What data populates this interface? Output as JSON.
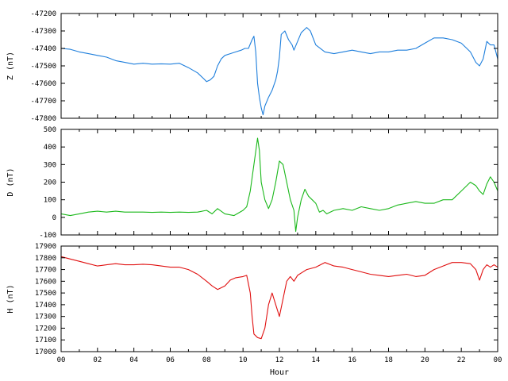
{
  "chart_data": [
    {
      "type": "line",
      "ylabel": "Z (nT)",
      "ylim": [
        -47800,
        -47200
      ],
      "yticks": [
        -47200,
        -47300,
        -47400,
        -47500,
        -47600,
        -47700,
        -47800
      ],
      "xlim": [
        0,
        24
      ],
      "grid": false,
      "series": [
        {
          "color": "#1f7fdc",
          "points": [
            [
              0,
              -47400
            ],
            [
              0.5,
              -47405
            ],
            [
              1,
              -47420
            ],
            [
              1.5,
              -47430
            ],
            [
              2,
              -47440
            ],
            [
              2.5,
              -47450
            ],
            [
              3,
              -47470
            ],
            [
              3.5,
              -47480
            ],
            [
              4,
              -47490
            ],
            [
              4.5,
              -47485
            ],
            [
              5,
              -47490
            ],
            [
              5.5,
              -47488
            ],
            [
              6,
              -47490
            ],
            [
              6.5,
              -47485
            ],
            [
              7,
              -47510
            ],
            [
              7.5,
              -47540
            ],
            [
              7.8,
              -47570
            ],
            [
              8,
              -47590
            ],
            [
              8.2,
              -47580
            ],
            [
              8.4,
              -47560
            ],
            [
              8.6,
              -47500
            ],
            [
              8.8,
              -47460
            ],
            [
              9,
              -47440
            ],
            [
              9.3,
              -47430
            ],
            [
              9.6,
              -47420
            ],
            [
              9.9,
              -47410
            ],
            [
              10.1,
              -47400
            ],
            [
              10.3,
              -47400
            ],
            [
              10.5,
              -47350
            ],
            [
              10.6,
              -47330
            ],
            [
              10.7,
              -47420
            ],
            [
              10.8,
              -47600
            ],
            [
              10.9,
              -47680
            ],
            [
              11,
              -47740
            ],
            [
              11.1,
              -47780
            ],
            [
              11.2,
              -47730
            ],
            [
              11.4,
              -47680
            ],
            [
              11.6,
              -47640
            ],
            [
              11.8,
              -47580
            ],
            [
              11.9,
              -47530
            ],
            [
              12,
              -47450
            ],
            [
              12.1,
              -47320
            ],
            [
              12.3,
              -47300
            ],
            [
              12.5,
              -47350
            ],
            [
              12.7,
              -47380
            ],
            [
              12.8,
              -47410
            ],
            [
              13,
              -47360
            ],
            [
              13.2,
              -47310
            ],
            [
              13.5,
              -47280
            ],
            [
              13.7,
              -47300
            ],
            [
              14,
              -47380
            ],
            [
              14.5,
              -47420
            ],
            [
              15,
              -47430
            ],
            [
              15.5,
              -47420
            ],
            [
              16,
              -47410
            ],
            [
              16.5,
              -47420
            ],
            [
              17,
              -47430
            ],
            [
              17.5,
              -47420
            ],
            [
              18,
              -47420
            ],
            [
              18.5,
              -47410
            ],
            [
              19,
              -47410
            ],
            [
              19.5,
              -47400
            ],
            [
              20,
              -47370
            ],
            [
              20.5,
              -47340
            ],
            [
              21,
              -47340
            ],
            [
              21.5,
              -47350
            ],
            [
              22,
              -47370
            ],
            [
              22.5,
              -47420
            ],
            [
              22.8,
              -47480
            ],
            [
              23,
              -47500
            ],
            [
              23.2,
              -47460
            ],
            [
              23.4,
              -47360
            ],
            [
              23.6,
              -47380
            ],
            [
              23.8,
              -47380
            ],
            [
              24,
              -47460
            ]
          ]
        }
      ]
    },
    {
      "type": "line",
      "ylabel": "D (nT)",
      "ylim": [
        -100,
        500
      ],
      "yticks": [
        500,
        400,
        300,
        200,
        100,
        0,
        -100
      ],
      "xlim": [
        0,
        24
      ],
      "grid": false,
      "series": [
        {
          "color": "#1ab81a",
          "points": [
            [
              0,
              20
            ],
            [
              0.5,
              10
            ],
            [
              1,
              20
            ],
            [
              1.5,
              30
            ],
            [
              2,
              35
            ],
            [
              2.5,
              30
            ],
            [
              3,
              35
            ],
            [
              3.5,
              30
            ],
            [
              4,
              30
            ],
            [
              4.5,
              30
            ],
            [
              5,
              28
            ],
            [
              5.5,
              30
            ],
            [
              6,
              28
            ],
            [
              6.5,
              30
            ],
            [
              7,
              28
            ],
            [
              7.5,
              30
            ],
            [
              8,
              40
            ],
            [
              8.3,
              20
            ],
            [
              8.6,
              50
            ],
            [
              9,
              20
            ],
            [
              9.5,
              10
            ],
            [
              10,
              40
            ],
            [
              10.2,
              60
            ],
            [
              10.4,
              150
            ],
            [
              10.6,
              300
            ],
            [
              10.8,
              450
            ],
            [
              10.9,
              380
            ],
            [
              11,
              200
            ],
            [
              11.2,
              100
            ],
            [
              11.4,
              50
            ],
            [
              11.6,
              100
            ],
            [
              11.8,
              200
            ],
            [
              12,
              320
            ],
            [
              12.2,
              300
            ],
            [
              12.4,
              200
            ],
            [
              12.6,
              100
            ],
            [
              12.8,
              40
            ],
            [
              12.9,
              -80
            ],
            [
              13,
              0
            ],
            [
              13.2,
              100
            ],
            [
              13.4,
              160
            ],
            [
              13.6,
              120
            ],
            [
              13.8,
              100
            ],
            [
              14,
              80
            ],
            [
              14.2,
              30
            ],
            [
              14.4,
              40
            ],
            [
              14.6,
              20
            ],
            [
              15,
              40
            ],
            [
              15.5,
              50
            ],
            [
              16,
              40
            ],
            [
              16.5,
              60
            ],
            [
              17,
              50
            ],
            [
              17.5,
              40
            ],
            [
              18,
              50
            ],
            [
              18.5,
              70
            ],
            [
              19,
              80
            ],
            [
              19.5,
              90
            ],
            [
              20,
              80
            ],
            [
              20.5,
              80
            ],
            [
              21,
              100
            ],
            [
              21.5,
              100
            ],
            [
              22,
              150
            ],
            [
              22.5,
              200
            ],
            [
              22.8,
              180
            ],
            [
              23,
              150
            ],
            [
              23.2,
              130
            ],
            [
              23.4,
              190
            ],
            [
              23.6,
              230
            ],
            [
              23.8,
              200
            ],
            [
              24,
              150
            ]
          ]
        }
      ]
    },
    {
      "type": "line",
      "xlabel": "Hour",
      "ylabel": "H (nT)",
      "ylim": [
        17000,
        17900
      ],
      "yticks": [
        17900,
        17800,
        17700,
        17600,
        17500,
        17400,
        17300,
        17200,
        17100,
        17000
      ],
      "xlim": [
        0,
        24
      ],
      "xticks": [
        "00",
        "02",
        "04",
        "06",
        "08",
        "10",
        "12",
        "14",
        "16",
        "18",
        "20",
        "22",
        "00"
      ],
      "grid": false,
      "series": [
        {
          "color": "#e01010",
          "points": [
            [
              0,
              17810
            ],
            [
              0.5,
              17790
            ],
            [
              1,
              17770
            ],
            [
              1.5,
              17750
            ],
            [
              2,
              17730
            ],
            [
              2.5,
              17740
            ],
            [
              3,
              17750
            ],
            [
              3.5,
              17740
            ],
            [
              4,
              17740
            ],
            [
              4.5,
              17745
            ],
            [
              5,
              17740
            ],
            [
              5.5,
              17730
            ],
            [
              6,
              17720
            ],
            [
              6.5,
              17720
            ],
            [
              7,
              17700
            ],
            [
              7.5,
              17660
            ],
            [
              8,
              17600
            ],
            [
              8.3,
              17560
            ],
            [
              8.6,
              17530
            ],
            [
              9,
              17560
            ],
            [
              9.3,
              17610
            ],
            [
              9.6,
              17630
            ],
            [
              10,
              17640
            ],
            [
              10.2,
              17650
            ],
            [
              10.4,
              17500
            ],
            [
              10.5,
              17300
            ],
            [
              10.6,
              17150
            ],
            [
              10.8,
              17120
            ],
            [
              11,
              17110
            ],
            [
              11.2,
              17200
            ],
            [
              11.4,
              17400
            ],
            [
              11.6,
              17500
            ],
            [
              11.8,
              17400
            ],
            [
              12,
              17300
            ],
            [
              12.2,
              17450
            ],
            [
              12.4,
              17600
            ],
            [
              12.6,
              17640
            ],
            [
              12.8,
              17600
            ],
            [
              13,
              17650
            ],
            [
              13.5,
              17700
            ],
            [
              14,
              17720
            ],
            [
              14.5,
              17760
            ],
            [
              15,
              17730
            ],
            [
              15.5,
              17720
            ],
            [
              16,
              17700
            ],
            [
              16.5,
              17680
            ],
            [
              17,
              17660
            ],
            [
              17.5,
              17650
            ],
            [
              18,
              17640
            ],
            [
              18.5,
              17650
            ],
            [
              19,
              17660
            ],
            [
              19.5,
              17640
            ],
            [
              20,
              17650
            ],
            [
              20.5,
              17700
            ],
            [
              21,
              17730
            ],
            [
              21.5,
              17760
            ],
            [
              22,
              17760
            ],
            [
              22.5,
              17750
            ],
            [
              22.8,
              17700
            ],
            [
              23,
              17610
            ],
            [
              23.2,
              17700
            ],
            [
              23.4,
              17740
            ],
            [
              23.6,
              17720
            ],
            [
              23.8,
              17740
            ],
            [
              24,
              17720
            ]
          ]
        }
      ]
    }
  ]
}
